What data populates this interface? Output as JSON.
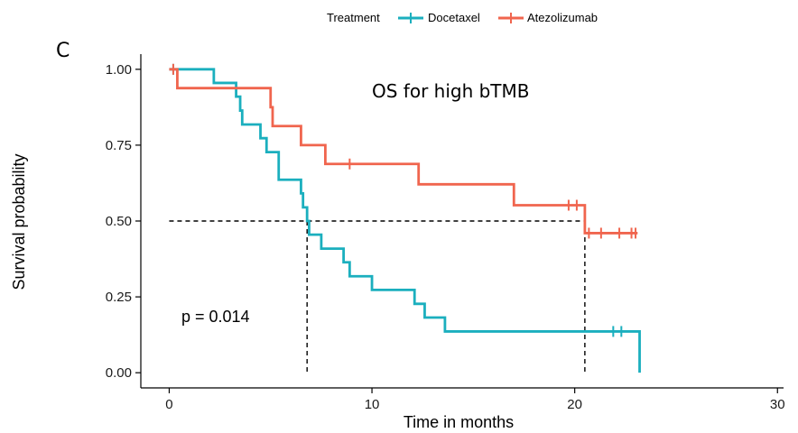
{
  "chart_data": {
    "type": "line",
    "panel_label": "C",
    "annotation": "OS for high  bTMB",
    "p_value_text": "p = 0.014",
    "xlabel": "Time in months",
    "ylabel": "Survival probability",
    "xlim": [
      -1.4,
      30.3
    ],
    "ylim": [
      -0.05,
      1.05
    ],
    "x_ticks": [
      0,
      10,
      20,
      30
    ],
    "x_tick_labels": [
      "0",
      "10",
      "20",
      "30"
    ],
    "y_ticks": [
      0,
      0.25,
      0.5,
      0.75,
      1.0
    ],
    "y_tick_labels": [
      "0.00",
      "0.25",
      "0.50",
      "0.75",
      "1.00"
    ],
    "grid": false,
    "legend": {
      "title": "Treatment",
      "placement": "top",
      "entries": [
        "Docetaxel",
        "Atezolizumab"
      ]
    },
    "colors": {
      "Docetaxel": "#1BAFBE",
      "Atezolizumab": "#F0654E"
    },
    "series": [
      {
        "name": "Docetaxel",
        "color": "#1BAFBE",
        "steps": [
          [
            0,
            1.0
          ],
          [
            2.2,
            0.955
          ],
          [
            3.3,
            0.91
          ],
          [
            3.5,
            0.864
          ],
          [
            3.6,
            0.818
          ],
          [
            4.5,
            0.773
          ],
          [
            4.8,
            0.727
          ],
          [
            5.4,
            0.636
          ],
          [
            6.5,
            0.591
          ],
          [
            6.6,
            0.545
          ],
          [
            6.8,
            0.5
          ],
          [
            6.9,
            0.455
          ],
          [
            7.5,
            0.409
          ],
          [
            8.6,
            0.364
          ],
          [
            8.9,
            0.318
          ],
          [
            10.0,
            0.273
          ],
          [
            12.1,
            0.227
          ],
          [
            12.6,
            0.182
          ],
          [
            13.6,
            0.136
          ],
          [
            23.2,
            0.0
          ]
        ],
        "end_x": 23.2,
        "censored": [
          [
            0.2,
            1.0
          ],
          [
            21.9,
            0.136
          ],
          [
            22.3,
            0.136
          ]
        ]
      },
      {
        "name": "Atezolizumab",
        "color": "#F0654E",
        "steps": [
          [
            0,
            1.0
          ],
          [
            0.4,
            0.938
          ],
          [
            5.0,
            0.875
          ],
          [
            5.1,
            0.813
          ],
          [
            6.5,
            0.75
          ],
          [
            7.7,
            0.688
          ],
          [
            12.3,
            0.621
          ],
          [
            17.0,
            0.552
          ],
          [
            20.5,
            0.46
          ]
        ],
        "end_x": 23.1,
        "censored": [
          [
            0.2,
            1.0
          ],
          [
            8.9,
            0.688
          ],
          [
            19.7,
            0.552
          ],
          [
            20.1,
            0.552
          ],
          [
            20.7,
            0.46
          ],
          [
            21.3,
            0.46
          ],
          [
            22.2,
            0.46
          ],
          [
            22.8,
            0.46
          ],
          [
            23.0,
            0.46
          ]
        ]
      }
    ],
    "median_lines": {
      "y": 0.5,
      "x": [
        6.8,
        20.5
      ]
    }
  }
}
